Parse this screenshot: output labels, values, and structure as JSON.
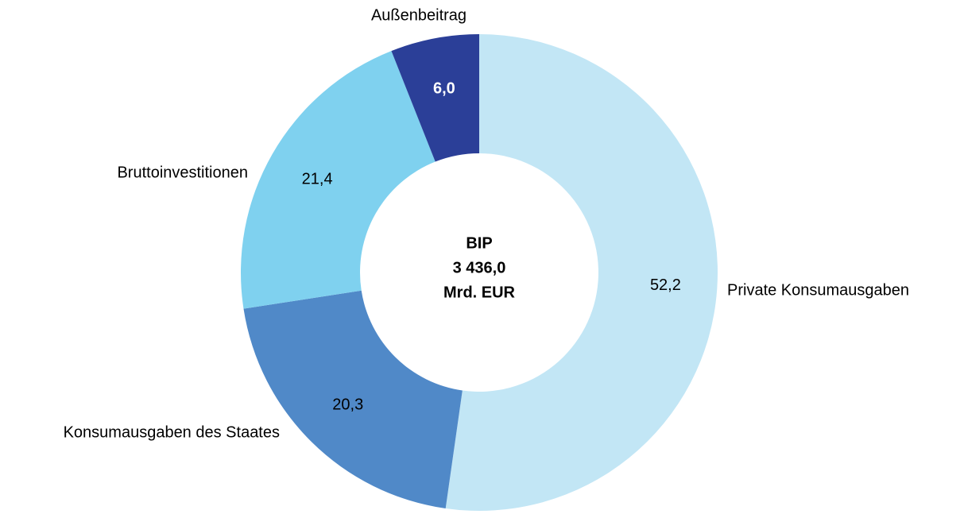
{
  "chart_data": {
    "type": "donut",
    "categories": [
      "Private Konsumausgaben",
      "Konsumausgaben des Staates",
      "Bruttoinvestitionen",
      "Außenbeitrag"
    ],
    "values": [
      52.2,
      20.3,
      21.4,
      6.0
    ],
    "value_labels": [
      "52,2",
      "20,3",
      "21,4",
      "6,0"
    ],
    "colors": [
      "#c2e6f5",
      "#5089c8",
      "#7fd1ef",
      "#2b3f98"
    ],
    "center_label": [
      "BIP",
      "3 436,0",
      "Mrd. EUR"
    ]
  }
}
